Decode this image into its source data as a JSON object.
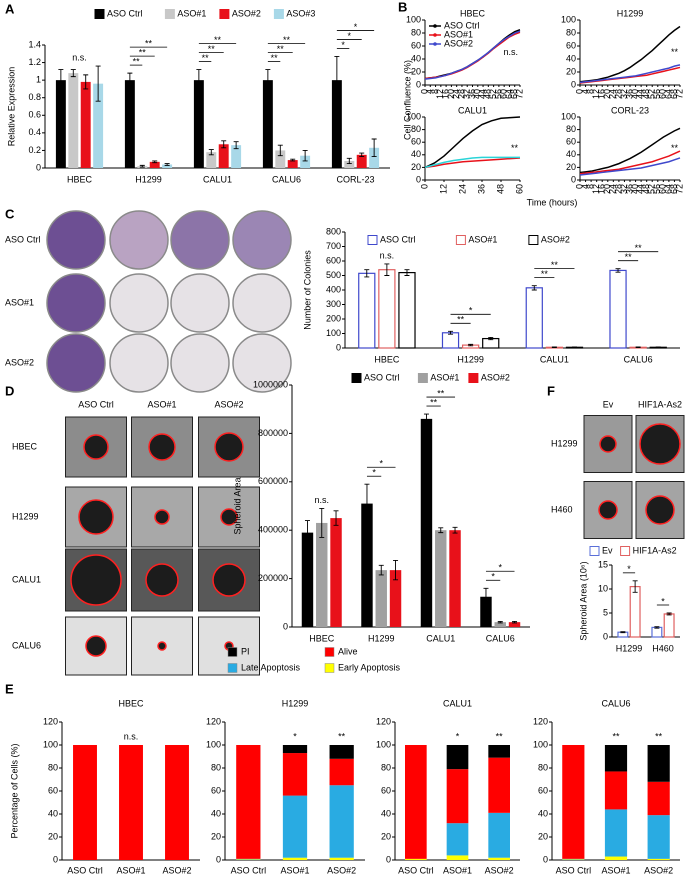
{
  "panels": [
    "A",
    "B",
    "C",
    "D",
    "E",
    "F"
  ],
  "panel_B": {
    "ylabel": "Cell Confluence (%)",
    "xlabel": "Time (hours)"
  },
  "image_grids": [
    {
      "columns": [
        "HBEC",
        "H1299",
        "CALU1",
        "CALU6"
      ],
      "rows": [
        "ASO Ctrl",
        "ASO#1",
        "ASO#2"
      ]
    },
    {
      "columns": [
        "ASO Ctrl",
        "ASO#1",
        "ASO#2"
      ],
      "rows": [
        "HBEC",
        "H1299",
        "CALU1",
        "CALU6"
      ]
    },
    {
      "columns": [
        "Ev",
        "HIF1A-As2"
      ],
      "rows": [
        "H1299",
        "H460"
      ]
    }
  ],
  "chart_data": [
    {
      "type": "bar",
      "ylabel": "Relative Expression",
      "legend": "top",
      "categories": [
        "HBEC",
        "H1299",
        "CALU1",
        "CALU6",
        "CORL-23"
      ],
      "series": [
        {
          "name": "ASO Ctrl",
          "color": "#000000",
          "values": [
            1,
            1,
            1,
            1,
            1
          ],
          "errors": [
            0.12,
            0.08,
            0.12,
            0.12,
            0.27
          ]
        },
        {
          "name": "ASO#1",
          "color": "#c8c8c8",
          "values": [
            1.08,
            0.02,
            0.18,
            0.2,
            0.08
          ],
          "errors": [
            0.04,
            0.01,
            0.03,
            0.06,
            0.03
          ]
        },
        {
          "name": "ASO#2",
          "color": "#e8111a",
          "values": [
            0.98,
            0.07,
            0.27,
            0.09,
            0.15
          ],
          "errors": [
            0.08,
            0.01,
            0.04,
            0.01,
            0.02
          ]
        },
        {
          "name": "ASO#3",
          "color": "#a8d8e8",
          "values": [
            0.96,
            0.04,
            0.26,
            0.14,
            0.23
          ],
          "errors": [
            0.2,
            0.01,
            0.04,
            0.06,
            0.1
          ]
        }
      ],
      "ylim": [
        0,
        1.4
      ],
      "yticks": [
        0,
        0.2,
        0.4,
        0.6,
        0.8,
        1,
        1.2,
        1.4
      ],
      "significance": [
        [
          "n.s."
        ],
        [
          "**",
          "**",
          "**"
        ],
        [
          "**",
          "**",
          "**"
        ],
        [
          "**",
          "**",
          "**"
        ],
        [
          "*",
          "*",
          "*"
        ]
      ]
    },
    {
      "type": "line",
      "title": "HBEC",
      "legend": "upper left",
      "annotation": "n.s.",
      "x": [
        0,
        4,
        8,
        12,
        16,
        20,
        24,
        28,
        32,
        36,
        40,
        44,
        48,
        52,
        56,
        60,
        64,
        68,
        72
      ],
      "series": [
        {
          "name": "ASO Ctrl",
          "color": "#000000",
          "values": [
            10,
            11,
            12,
            14,
            16,
            18,
            21,
            24,
            28,
            33,
            38,
            43,
            50,
            57,
            64,
            71,
            77,
            82,
            85
          ]
        },
        {
          "name": "ASO#1",
          "color": "#e8111a",
          "values": [
            10,
            11,
            12,
            13,
            15,
            17,
            20,
            23,
            27,
            32,
            37,
            43,
            49,
            56,
            62,
            68,
            74,
            78,
            81
          ]
        },
        {
          "name": "ASO#2",
          "color": "#3f48cc",
          "values": [
            9,
            10,
            11,
            13,
            15,
            18,
            21,
            24,
            28,
            33,
            38,
            44,
            50,
            57,
            64,
            70,
            75,
            80,
            83
          ]
        }
      ],
      "xlim": [
        0,
        72
      ],
      "xticks": [
        0,
        4,
        8,
        12,
        16,
        20,
        24,
        28,
        32,
        36,
        40,
        44,
        48,
        52,
        56,
        60,
        64,
        68,
        72
      ],
      "ylim": [
        0,
        100
      ],
      "yticks": [
        0,
        20,
        40,
        60,
        80,
        100
      ]
    },
    {
      "type": "line",
      "title": "H1299",
      "annotation": "**",
      "x": [
        0,
        4,
        8,
        12,
        16,
        20,
        24,
        28,
        32,
        36,
        40,
        44,
        48,
        52,
        56,
        60,
        64,
        68,
        72
      ],
      "series": [
        {
          "color": "#000000",
          "values": [
            5,
            6,
            7,
            8,
            10,
            12,
            15,
            18,
            22,
            27,
            33,
            39,
            46,
            53,
            61,
            69,
            77,
            84,
            90
          ]
        },
        {
          "color": "#e8111a",
          "values": [
            3,
            4,
            5,
            6,
            7,
            8,
            9,
            10,
            11,
            12,
            13,
            14,
            15,
            17,
            19,
            21,
            23,
            25,
            27
          ]
        },
        {
          "color": "#3f48cc",
          "values": [
            4,
            5,
            6,
            7,
            8,
            9,
            10,
            11,
            12,
            13,
            14,
            16,
            18,
            20,
            22,
            24,
            26,
            29,
            31
          ]
        }
      ],
      "xlim": [
        0,
        72
      ],
      "xticks": [
        0,
        4,
        8,
        12,
        16,
        20,
        24,
        28,
        32,
        36,
        40,
        44,
        48,
        52,
        56,
        60,
        64,
        68,
        72
      ],
      "ylim": [
        0,
        100
      ],
      "yticks": [
        0,
        20,
        40,
        60,
        80,
        100
      ]
    },
    {
      "type": "line",
      "title": "CALU1",
      "annotation": "**",
      "x": [
        0,
        6,
        12,
        18,
        24,
        30,
        36,
        42,
        48,
        54,
        60
      ],
      "series": [
        {
          "color": "#000000",
          "values": [
            20,
            27,
            38,
            52,
            66,
            78,
            88,
            94,
            98,
            99,
            100
          ]
        },
        {
          "color": "#e8111a",
          "values": [
            20,
            22,
            25,
            27,
            29,
            30,
            31,
            32,
            33,
            34,
            35
          ]
        },
        {
          "color": "#2ad4d8",
          "values": [
            20,
            24,
            28,
            31,
            33,
            35,
            36,
            36,
            36,
            36,
            36
          ]
        }
      ],
      "xlim": [
        0,
        60
      ],
      "xticks": [
        0,
        12,
        24,
        36,
        48,
        60
      ],
      "ylim": [
        0,
        100
      ],
      "yticks": [
        0,
        20,
        40,
        60,
        80,
        100
      ]
    },
    {
      "type": "line",
      "title": "CORL-23",
      "annotation": "**",
      "x": [
        0,
        4,
        8,
        12,
        16,
        20,
        24,
        28,
        32,
        36,
        40,
        44,
        48,
        52,
        56,
        60,
        64,
        68,
        72
      ],
      "series": [
        {
          "color": "#000000",
          "values": [
            12,
            13,
            14,
            16,
            18,
            20,
            23,
            26,
            30,
            34,
            39,
            44,
            50,
            56,
            62,
            68,
            73,
            78,
            82
          ]
        },
        {
          "color": "#e8111a",
          "values": [
            10,
            11,
            12,
            13,
            14,
            15,
            16,
            17,
            19,
            21,
            23,
            25,
            27,
            29,
            32,
            35,
            38,
            42,
            46
          ]
        },
        {
          "color": "#3f48cc",
          "values": [
            8,
            9,
            10,
            11,
            12,
            13,
            14,
            15,
            16,
            17,
            18,
            19,
            21,
            23,
            25,
            27,
            29,
            32,
            35
          ]
        }
      ],
      "xlim": [
        0,
        72
      ],
      "xticks": [
        0,
        4,
        8,
        12,
        16,
        20,
        24,
        28,
        32,
        36,
        40,
        44,
        48,
        52,
        56,
        60,
        64,
        68,
        72
      ],
      "ylim": [
        0,
        100
      ],
      "yticks": [
        0,
        20,
        40,
        60,
        80,
        100
      ]
    },
    {
      "type": "bar",
      "bar_style": "outline",
      "ylabel": "Number of Colonies",
      "legend": "top",
      "categories": [
        "HBEC",
        "H1299",
        "CALU1",
        "CALU6"
      ],
      "series": [
        {
          "name": "ASO Ctrl",
          "color": "#3f48cc",
          "values": [
            515,
            105,
            415,
            535
          ],
          "errors": [
            25,
            10,
            15,
            12
          ]
        },
        {
          "name": "ASO#1",
          "color": "#e06060",
          "values": [
            540,
            20,
            5,
            5
          ],
          "errors": [
            40,
            5,
            2,
            2
          ]
        },
        {
          "name": "ASO#2",
          "color": "#000000",
          "values": [
            520,
            65,
            5,
            5
          ],
          "errors": [
            20,
            8,
            2,
            2
          ]
        }
      ],
      "ylim": [
        0,
        800
      ],
      "yticks": [
        0,
        100,
        200,
        300,
        400,
        500,
        600,
        700,
        800
      ],
      "significance": [
        [
          "n.s."
        ],
        [
          "**",
          "*"
        ],
        [
          "**",
          "**"
        ],
        [
          "**",
          "**"
        ]
      ]
    },
    {
      "type": "bar",
      "ylabel": "Spheroid Area",
      "legend": "top",
      "categories": [
        "HBEC",
        "H1299",
        "CALU1",
        "CALU6"
      ],
      "series": [
        {
          "name": "ASO Ctrl",
          "color": "#000000",
          "values": [
            390000,
            510000,
            860000,
            125000
          ],
          "errors": [
            50000,
            80000,
            20000,
            35000
          ]
        },
        {
          "name": "ASO#1",
          "color": "#a0a0a0",
          "values": [
            430000,
            235000,
            400000,
            20000
          ],
          "errors": [
            60000,
            20000,
            10000,
            3000
          ]
        },
        {
          "name": "ASO#2",
          "color": "#e8111a",
          "values": [
            450000,
            235000,
            400000,
            20000
          ],
          "errors": [
            30000,
            40000,
            12000,
            3000
          ]
        }
      ],
      "ylim": [
        0,
        1000000
      ],
      "yticks": [
        0,
        200000,
        400000,
        600000,
        800000,
        1000000
      ],
      "significance": [
        [
          "n.s."
        ],
        [
          "*",
          "*"
        ],
        [
          "**",
          "**"
        ],
        [
          "*",
          "*"
        ]
      ]
    },
    {
      "type": "bar",
      "bar_style": "outline",
      "ylabel": "Spheroid Area (10⁶)",
      "legend": "top",
      "categories": [
        "H1299",
        "H460"
      ],
      "series": [
        {
          "name": "Ev",
          "color": "#5a6fd8",
          "values": [
            1,
            2
          ],
          "errors": [
            0.1,
            0.15
          ]
        },
        {
          "name": "HIF1A-As2",
          "color": "#e06060",
          "values": [
            10.5,
            4.8
          ],
          "errors": [
            1.2,
            0.2
          ]
        }
      ],
      "ylim": [
        0,
        15
      ],
      "yticks": [
        0,
        5,
        10,
        15
      ],
      "significance": [
        [
          "*"
        ],
        [
          "*"
        ]
      ]
    },
    {
      "type": "stacked",
      "ylabel": "Percentage of Cells (%)",
      "legend": "top",
      "titles": [
        "HBEC",
        "H1299",
        "CALU1",
        "CALU6"
      ],
      "categories": [
        "ASO Ctrl",
        "ASO#1",
        "ASO#2"
      ],
      "series": [
        {
          "name": "PI",
          "color": "#000000",
          "values": [
            [
              0,
              0,
              0
            ],
            [
              0,
              7,
              12
            ],
            [
              0,
              21,
              11
            ],
            [
              0,
              23,
              32
            ]
          ]
        },
        {
          "name": "Alive",
          "color": "#ff0000",
          "values": [
            [
              100,
              100,
              100
            ],
            [
              99,
              37,
              23
            ],
            [
              99,
              47,
              48
            ],
            [
              99,
              33,
              29
            ]
          ]
        },
        {
          "name": "Late Apoptosis",
          "color": "#29abe2",
          "values": [
            [
              0,
              0,
              0
            ],
            [
              0.5,
              54,
              63
            ],
            [
              0,
              28,
              39
            ],
            [
              0.5,
              41,
              38
            ]
          ]
        },
        {
          "name": "Early Apoptosis",
          "color": "#ffff00",
          "values": [
            [
              0,
              0,
              0
            ],
            [
              0.5,
              2,
              2
            ],
            [
              1,
              4,
              2
            ],
            [
              0.5,
              3,
              1
            ]
          ]
        }
      ],
      "ylim": [
        0,
        120
      ],
      "yticks": [
        0,
        20,
        40,
        60,
        80,
        100,
        120
      ],
      "significance": [
        [
          null,
          "n.s.",
          null
        ],
        [
          null,
          "*",
          "**"
        ],
        [
          null,
          "*",
          "**"
        ],
        [
          null,
          "**",
          "**"
        ]
      ]
    }
  ]
}
